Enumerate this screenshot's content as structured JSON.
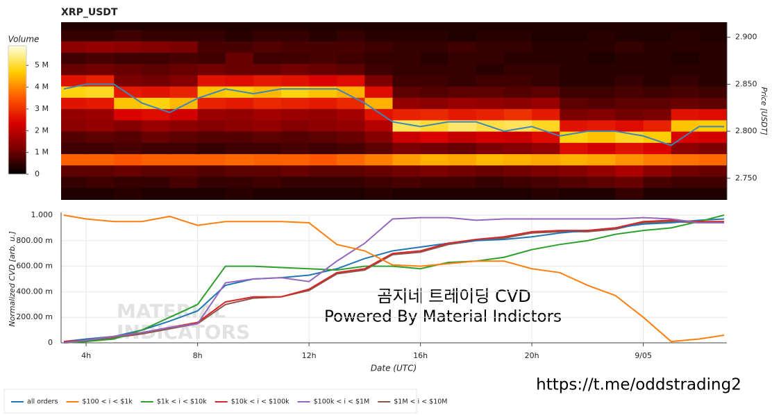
{
  "chart_data": [
    {
      "type": "heatmap",
      "title": "XRP_USDT",
      "ylabel": "Price [USDT]",
      "xlim": [
        3.1,
        27
      ],
      "ylim": [
        2.727,
        2.916
      ],
      "yticks": [
        {
          "value": 2.75,
          "label": "2.750"
        },
        {
          "value": 2.8,
          "label": "2.800"
        },
        {
          "value": 2.85,
          "label": "2.850"
        },
        {
          "value": 2.9,
          "label": "2.900"
        }
      ],
      "xbins": [
        3,
        4,
        5,
        6,
        7,
        8,
        9,
        10,
        11,
        12,
        13,
        14,
        15,
        16,
        17,
        18,
        19,
        20,
        21,
        22,
        23,
        24,
        25,
        26,
        27
      ],
      "ybins": [
        2.728,
        2.74,
        2.752,
        2.764,
        2.776,
        2.788,
        2.8,
        2.812,
        2.824,
        2.836,
        2.848,
        2.86,
        2.872,
        2.884,
        2.896,
        2.908,
        2.92
      ],
      "z": [
        [
          300000,
          300000,
          400000,
          300000,
          300000,
          300000,
          400000,
          300000,
          300000,
          300000,
          300000,
          400000,
          300000,
          300000,
          300000,
          300000,
          300000,
          400000,
          300000,
          300000,
          500000,
          300000,
          300000,
          300000
        ],
        [
          500000,
          600000,
          500000,
          500000,
          700000,
          500000,
          500000,
          600000,
          500000,
          500000,
          500000,
          600000,
          700000,
          600000,
          600000,
          500000,
          600000,
          700000,
          800000,
          900000,
          1000000,
          700000,
          600000,
          600000
        ],
        [
          900000,
          900000,
          1000000,
          900000,
          900000,
          800000,
          900000,
          900000,
          1000000,
          900000,
          900000,
          1000000,
          1100000,
          1200000,
          1100000,
          1000000,
          1100000,
          1200000,
          1300000,
          1500000,
          1800000,
          1400000,
          1100000,
          1000000
        ],
        [
          3600000,
          3600000,
          3500000,
          3600000,
          3600000,
          3600000,
          3700000,
          3600000,
          3600000,
          3500000,
          3700000,
          3900000,
          4200000,
          4400000,
          4300000,
          4500000,
          4400000,
          4300000,
          4400000,
          4300000,
          4100000,
          3900000,
          3800000,
          3700000
        ],
        [
          600000,
          600000,
          700000,
          600000,
          600000,
          500000,
          600000,
          600000,
          700000,
          600000,
          700000,
          900000,
          1200000,
          1100000,
          1000000,
          1200000,
          1300000,
          1500000,
          2500000,
          2300000,
          2600000,
          2400000,
          1400000,
          1200000
        ],
        [
          800000,
          900000,
          800000,
          1000000,
          900000,
          800000,
          800000,
          900000,
          800000,
          900000,
          1000000,
          1300000,
          2200000,
          2400000,
          2100000,
          2300000,
          2200000,
          2500000,
          4800000,
          4600000,
          4900000,
          4700000,
          2400000,
          2300000
        ],
        [
          1400000,
          1500000,
          1300000,
          1600000,
          1400000,
          1300000,
          1400000,
          1500000,
          1300000,
          1400000,
          1500000,
          1900000,
          5200000,
          5000000,
          5300000,
          5100000,
          5200000,
          4900000,
          2600000,
          2700000,
          2500000,
          2800000,
          4600000,
          4700000
        ],
        [
          1500000,
          1600000,
          2400000,
          2500000,
          2300000,
          1600000,
          1500000,
          1700000,
          1600000,
          1500000,
          1700000,
          2600000,
          2800000,
          2900000,
          2700000,
          2800000,
          3000000,
          2700000,
          1200000,
          1300000,
          1100000,
          1200000,
          2600000,
          2500000
        ],
        [
          2600000,
          2700000,
          4600000,
          4800000,
          4500000,
          2800000,
          2700000,
          2900000,
          2800000,
          2700000,
          2900000,
          4400000,
          1500000,
          1400000,
          1600000,
          1500000,
          1400000,
          1600000,
          900000,
          800000,
          900000,
          900000,
          1000000,
          900000
        ],
        [
          4800000,
          4900000,
          2700000,
          2600000,
          2800000,
          4600000,
          4700000,
          4500000,
          4800000,
          4600000,
          4400000,
          2500000,
          900000,
          800000,
          900000,
          900000,
          800000,
          900000,
          600000,
          600000,
          700000,
          600000,
          700000,
          600000
        ],
        [
          2600000,
          2800000,
          1200000,
          1100000,
          1300000,
          2600000,
          2500000,
          2700000,
          2600000,
          2400000,
          2500000,
          1200000,
          600000,
          600000,
          500000,
          600000,
          600000,
          500000,
          400000,
          400000,
          500000,
          400000,
          500000,
          400000
        ],
        [
          1000000,
          1100000,
          1000000,
          900000,
          1000000,
          1100000,
          1000000,
          1000000,
          1100000,
          1000000,
          900000,
          600000,
          500000,
          500000,
          500000,
          400000,
          500000,
          500000,
          400000,
          400000,
          400000,
          400000,
          400000,
          400000
        ],
        [
          600000,
          700000,
          600000,
          600000,
          700000,
          600000,
          1000000,
          600000,
          600000,
          700000,
          600000,
          500000,
          500000,
          400000,
          500000,
          500000,
          400000,
          400000,
          400000,
          300000,
          400000,
          400000,
          300000,
          400000
        ],
        [
          1400000,
          1500000,
          1400000,
          1300000,
          1200000,
          700000,
          700000,
          800000,
          700000,
          700000,
          700000,
          600000,
          500000,
          500000,
          600000,
          500000,
          500000,
          400000,
          400000,
          400000,
          500000,
          400000,
          400000,
          400000
        ],
        [
          500000,
          500000,
          600000,
          500000,
          500000,
          500000,
          400000,
          500000,
          500000,
          400000,
          500000,
          400000,
          400000,
          400000,
          300000,
          400000,
          400000,
          300000,
          300000,
          400000,
          300000,
          300000,
          400000,
          300000
        ],
        [
          300000,
          300000,
          300000,
          300000,
          300000,
          300000,
          300000,
          300000,
          300000,
          300000,
          300000,
          300000,
          300000,
          300000,
          300000,
          300000,
          300000,
          300000,
          300000,
          300000,
          300000,
          300000,
          300000,
          300000
        ]
      ],
      "zlim": [
        0,
        5900000
      ],
      "colorscale": [
        "#000000",
        "#7a0000",
        "#d80000",
        "#ff5a00",
        "#ffd000",
        "#ffffe0"
      ],
      "colorbar_title": "Volume",
      "colorbar_ticks": [
        0,
        {
          "value": 1000000,
          "label": "1 M"
        },
        {
          "value": 2000000,
          "label": "2 M"
        },
        {
          "value": 3000000,
          "label": "3 M"
        },
        {
          "value": 4000000,
          "label": "4 M"
        },
        {
          "value": 5000000,
          "label": "5 M"
        }
      ],
      "line": {
        "color": "#3f86b8",
        "x": [
          3.2,
          4,
          5,
          6,
          7,
          8,
          9,
          10,
          11,
          12,
          13,
          14,
          15,
          16,
          17,
          18,
          19,
          20,
          21,
          22,
          23,
          24,
          25,
          26,
          26.9
        ],
        "values": [
          2.845,
          2.85,
          2.85,
          2.83,
          2.82,
          2.835,
          2.845,
          2.84,
          2.845,
          2.845,
          2.845,
          2.83,
          2.81,
          2.805,
          2.81,
          2.81,
          2.8,
          2.805,
          2.795,
          2.8,
          2.8,
          2.795,
          2.785,
          2.805,
          2.805
        ]
      }
    },
    {
      "type": "line",
      "xlabel": "Date (UTC)",
      "ylabel": "Normalized CVD [arb. u.]",
      "xlim": [
        3.1,
        27
      ],
      "ylim": [
        0,
        1
      ],
      "xticks": [
        {
          "value": 4,
          "label": "4h"
        },
        {
          "value": 8,
          "label": "8h"
        },
        {
          "value": 12,
          "label": "12h"
        },
        {
          "value": 16,
          "label": "16h"
        },
        {
          "value": 20,
          "label": "20h"
        },
        {
          "value": 24,
          "label": "9/05"
        }
      ],
      "yticks": [
        0,
        {
          "value": 0.2,
          "label": "200.00 m"
        },
        {
          "value": 0.4,
          "label": "400.00 m"
        },
        {
          "value": 0.6,
          "label": "600.00 m"
        },
        {
          "value": 0.8,
          "label": "800.00 m"
        },
        {
          "value": 1,
          "label": "1.000"
        }
      ],
      "grid": true,
      "legend": "bottom-left",
      "x": [
        3.2,
        4,
        5,
        6,
        7,
        8,
        9,
        10,
        11,
        12,
        13,
        14,
        15,
        16,
        17,
        18,
        19,
        20,
        21,
        22,
        23,
        24,
        25,
        26,
        26.9
      ],
      "series": [
        {
          "name": "all orders",
          "color": "#1f77b4",
          "values": [
            0.01,
            0.03,
            0.05,
            0.1,
            0.17,
            0.25,
            0.45,
            0.5,
            0.51,
            0.53,
            0.58,
            0.66,
            0.72,
            0.75,
            0.78,
            0.8,
            0.81,
            0.83,
            0.86,
            0.88,
            0.9,
            0.93,
            0.94,
            0.96,
            0.97
          ]
        },
        {
          "name": "$100 < i < $1k",
          "color": "#ff7f0e",
          "values": [
            1.0,
            0.97,
            0.95,
            0.95,
            0.99,
            0.92,
            0.95,
            0.95,
            0.95,
            0.94,
            0.77,
            0.72,
            0.61,
            0.6,
            0.62,
            0.64,
            0.64,
            0.58,
            0.55,
            0.45,
            0.37,
            0.2,
            0.01,
            0.03,
            0.06
          ]
        },
        {
          "name": "$1k < i < $10k",
          "color": "#2ca02c",
          "values": [
            0,
            0.01,
            0.03,
            0.1,
            0.2,
            0.3,
            0.6,
            0.6,
            0.59,
            0.58,
            0.57,
            0.6,
            0.6,
            0.58,
            0.63,
            0.64,
            0.67,
            0.73,
            0.77,
            0.8,
            0.85,
            0.88,
            0.9,
            0.95,
            1.0
          ]
        },
        {
          "name": "$10k < i < $100k",
          "color": "#d62728",
          "values": [
            0.01,
            0.02,
            0.05,
            0.08,
            0.12,
            0.16,
            0.32,
            0.36,
            0.36,
            0.42,
            0.55,
            0.58,
            0.7,
            0.72,
            0.78,
            0.81,
            0.83,
            0.87,
            0.88,
            0.88,
            0.9,
            0.95,
            0.96,
            0.95,
            0.95
          ]
        },
        {
          "name": "$100k < i < $1M",
          "color": "#9467bd",
          "values": [
            0,
            0.02,
            0.05,
            0.08,
            0.12,
            0.15,
            0.47,
            0.5,
            0.51,
            0.48,
            0.64,
            0.78,
            0.97,
            0.98,
            0.98,
            0.96,
            0.97,
            0.97,
            0.97,
            0.97,
            0.97,
            0.98,
            0.97,
            0.94,
            0.94
          ]
        },
        {
          "name": "$1M < i < $10M",
          "color": "#8c564b",
          "values": [
            0,
            0.01,
            0.04,
            0.07,
            0.11,
            0.15,
            0.3,
            0.35,
            0.36,
            0.41,
            0.54,
            0.57,
            0.69,
            0.71,
            0.77,
            0.8,
            0.82,
            0.86,
            0.87,
            0.87,
            0.89,
            0.94,
            0.95,
            0.94,
            0.94
          ]
        }
      ],
      "watermark": [
        "MATERIAL",
        "INDICATORS"
      ],
      "annotations": [
        "곰지네 트레이딩 CVD",
        "Powered By Material Indictors"
      ]
    }
  ],
  "footer": "https://t.me/oddstrading2"
}
